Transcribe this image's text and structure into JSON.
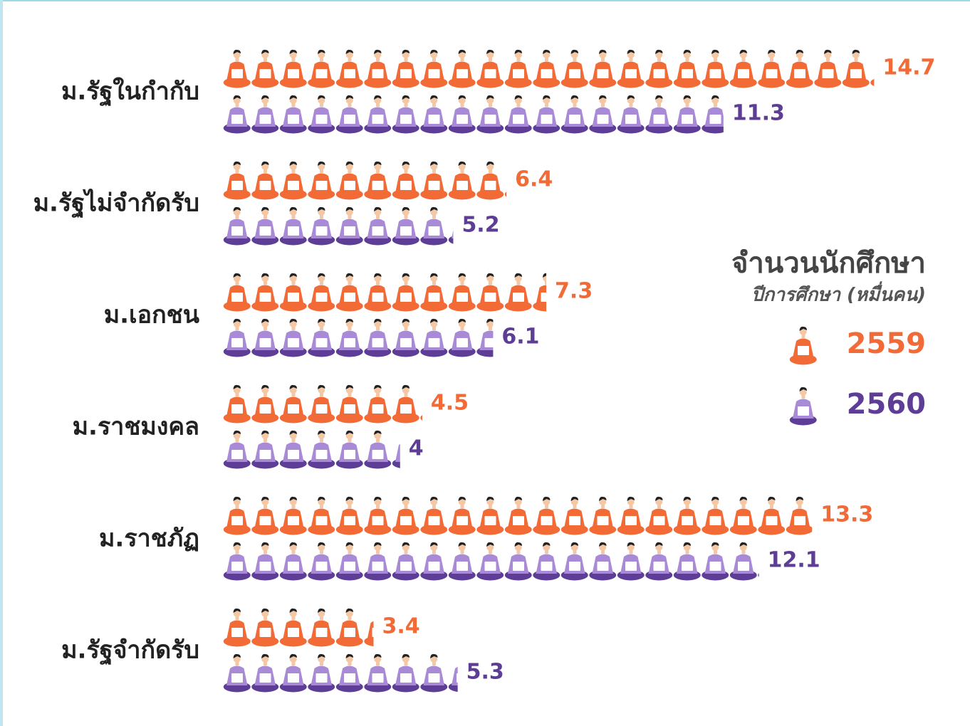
{
  "chart_data": {
    "type": "pictograph",
    "title": "จำนวนนักศึกษา",
    "subtitle": "ปีการศึกษา (หมื่นคน)",
    "categories": [
      "ม.รัฐในกำกับ",
      "ม.รัฐไม่จำกัดรับ",
      "ม.เอกชน",
      "ม.ราชมงคล",
      "ม.ราชภัฏ",
      "ม.รัฐจำกัดรับ"
    ],
    "series": [
      {
        "name": "2559",
        "color": "#f26a36",
        "values": [
          14.7,
          6.4,
          7.3,
          4.5,
          13.3,
          3.4
        ]
      },
      {
        "name": "2560",
        "color": "#5e3d96",
        "values": [
          11.3,
          5.2,
          6.1,
          4.0,
          12.1,
          5.3
        ]
      }
    ]
  }
}
